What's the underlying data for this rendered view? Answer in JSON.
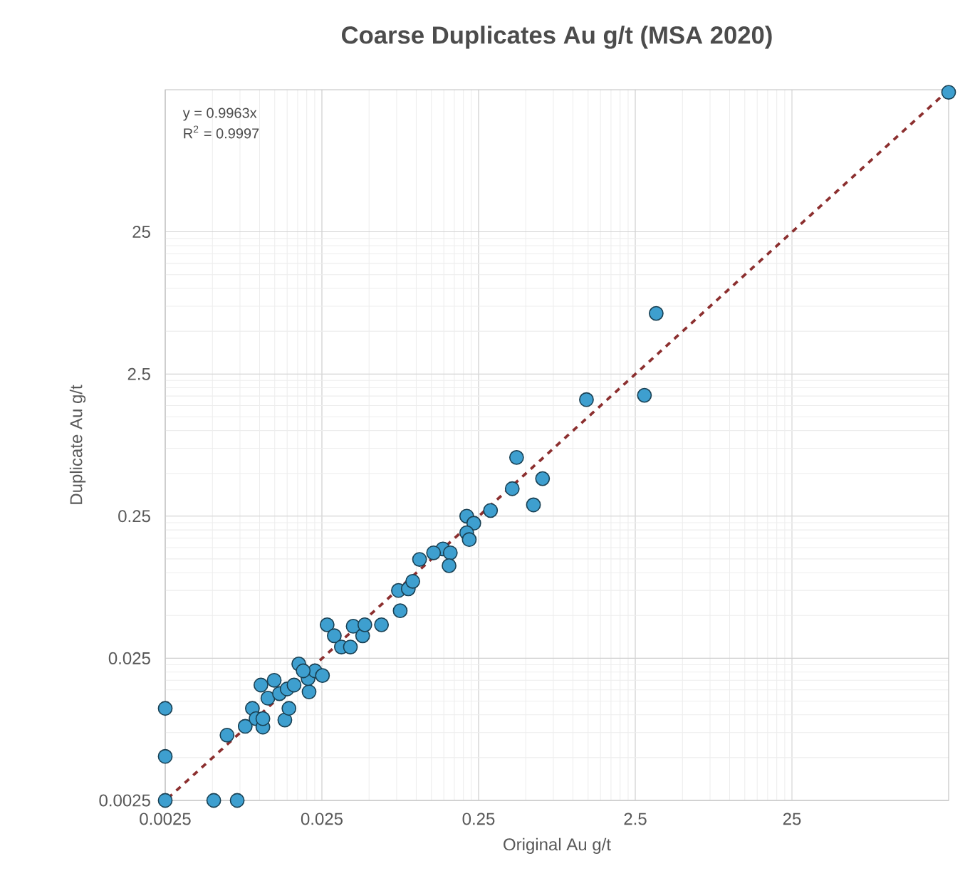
{
  "chart_data": {
    "type": "scatter",
    "title": "Coarse Duplicates Au g/t (MSA 2020)",
    "xlabel": "Original Au g/t",
    "ylabel": "Duplicate Au g/t",
    "log": "xy",
    "grid": true,
    "marker": "circle",
    "xlim": [
      0.0025,
      250
    ],
    "ylim": [
      0.0025,
      250
    ],
    "xticks": [
      0.0025,
      0.025,
      0.25,
      2.5,
      25
    ],
    "yticks": [
      0.0025,
      0.025,
      0.25,
      2.5,
      25
    ],
    "annotations": [
      "y = 0.9963x",
      "R$^{2}$ = 0.9997"
    ],
    "series": [
      {
        "color": "#3e9fcf",
        "x": [
          0.0025,
          0.0025,
          0.0025,
          0.0051,
          0.0072,
          0.0062,
          0.0081,
          0.009,
          0.0095,
          0.0105,
          0.0105,
          0.0102,
          0.0124,
          0.0113,
          0.0145,
          0.0154,
          0.0134,
          0.015,
          0.0166,
          0.0178,
          0.0207,
          0.0204,
          0.0226,
          0.0252,
          0.019,
          0.027,
          0.03,
          0.0333,
          0.038,
          0.0396,
          0.0455,
          0.047,
          0.06,
          0.079,
          0.077,
          0.089,
          0.095,
          0.437,
          0.64,
          0.56,
          0.41,
          0.298,
          0.21,
          0.233,
          0.21,
          0.218,
          0.148,
          0.129,
          0.165,
          0.162,
          0.105,
          3.4,
          2.86,
          1.22,
          250
        ],
        "values": [
          0.0111,
          0.0051,
          0.0025,
          0.0025,
          0.0025,
          0.0072,
          0.0083,
          0.0111,
          0.0094,
          0.0082,
          0.0094,
          0.0162,
          0.0175,
          0.0131,
          0.0092,
          0.0111,
          0.0141,
          0.0152,
          0.0162,
          0.0228,
          0.0145,
          0.018,
          0.0204,
          0.0189,
          0.0204,
          0.043,
          0.036,
          0.03,
          0.03,
          0.042,
          0.036,
          0.043,
          0.043,
          0.054,
          0.075,
          0.077,
          0.087,
          0.647,
          0.459,
          0.3,
          0.39,
          0.274,
          0.25,
          0.223,
          0.191,
          0.171,
          0.147,
          0.138,
          0.138,
          0.112,
          0.124,
          6.67,
          1.77,
          1.65,
          240
        ]
      },
      {
        "type": "line",
        "color": "#8c2f2f",
        "line_style": "dashed",
        "x": [
          0.0026,
          250
        ],
        "values": [
          0.00259,
          249.08
        ]
      }
    ]
  }
}
